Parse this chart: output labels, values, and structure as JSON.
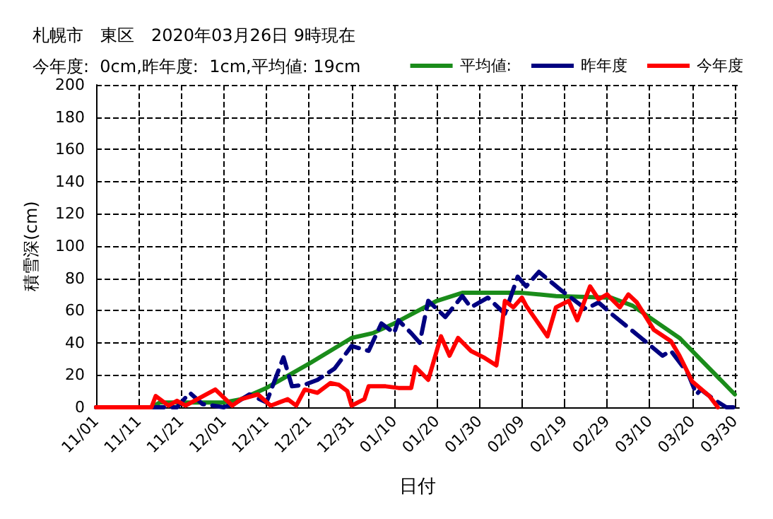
{
  "chart_data": {
    "type": "line",
    "title": "札幌市　東区　2020年03月26日 9時現在",
    "subtitle": "今年度:  0cm,昨年度:  1cm,平均値: 19cm",
    "xlabel": "日付",
    "ylabel": "積雪深(cm)",
    "xlim": [
      "2019-11-01",
      "2020-03-31"
    ],
    "xticks": [
      {
        "value": "2019-11-01",
        "label": "11/01"
      },
      {
        "value": "2019-11-11",
        "label": "11/11"
      },
      {
        "value": "2019-11-21",
        "label": "11/21"
      },
      {
        "value": "2019-12-01",
        "label": "12/01"
      },
      {
        "value": "2019-12-11",
        "label": "12/11"
      },
      {
        "value": "2019-12-21",
        "label": "12/21"
      },
      {
        "value": "2019-12-31",
        "label": "12/31"
      },
      {
        "value": "2020-01-10",
        "label": "01/10"
      },
      {
        "value": "2020-01-20",
        "label": "01/20"
      },
      {
        "value": "2020-01-30",
        "label": "01/30"
      },
      {
        "value": "2020-02-09",
        "label": "02/09"
      },
      {
        "value": "2020-02-19",
        "label": "02/19"
      },
      {
        "value": "2020-02-29",
        "label": "02/29"
      },
      {
        "value": "2020-03-10",
        "label": "03/10"
      },
      {
        "value": "2020-03-20",
        "label": "03/20"
      },
      {
        "value": "2020-03-30",
        "label": "03/30"
      }
    ],
    "ylim": [
      0,
      200
    ],
    "yticks": [
      0,
      20,
      40,
      60,
      80,
      100,
      120,
      140,
      160,
      180,
      200
    ],
    "grid": true,
    "legend": "top right",
    "marker": "none",
    "series": [
      {
        "name": "平均値:",
        "color": "#1a8c1a",
        "line_style": "solid",
        "x": [
          "2019-11-01",
          "2019-11-14",
          "2019-11-16",
          "2019-12-01",
          "2019-12-05",
          "2019-12-11",
          "2019-12-21",
          "2019-12-31",
          "2020-01-05",
          "2020-01-10",
          "2020-01-20",
          "2020-01-26",
          "2020-02-09",
          "2020-02-17",
          "2020-03-01",
          "2020-03-06",
          "2020-03-17",
          "2020-03-30"
        ],
        "values": [
          0,
          0,
          3,
          3,
          5,
          12,
          27,
          43,
          46,
          52,
          66,
          71,
          71,
          69,
          68,
          63,
          43,
          8
        ]
      },
      {
        "name": "昨年度",
        "color": "#000080",
        "line_style": "dashed",
        "x": [
          "2019-11-01",
          "2019-11-20",
          "2019-11-23",
          "2019-11-26",
          "2019-12-01",
          "2019-12-04",
          "2019-12-07",
          "2019-12-11",
          "2019-12-15",
          "2019-12-17",
          "2019-12-20",
          "2019-12-23",
          "2019-12-27",
          "2019-12-31",
          "2020-01-04",
          "2020-01-07",
          "2020-01-10",
          "2020-01-11",
          "2020-01-14",
          "2020-01-16",
          "2020-01-18",
          "2020-01-22",
          "2020-01-26",
          "2020-01-28",
          "2020-02-01",
          "2020-02-05",
          "2020-02-08",
          "2020-02-10",
          "2020-02-13",
          "2020-02-18",
          "2020-02-24",
          "2020-02-27",
          "2020-03-01",
          "2020-03-08",
          "2020-03-13",
          "2020-03-15",
          "2020-03-19",
          "2020-03-21",
          "2020-03-22",
          "2020-03-25",
          "2020-03-28",
          "2020-03-30"
        ],
        "values": [
          0,
          0,
          9,
          2,
          0,
          3,
          8,
          3,
          31,
          13,
          14,
          17,
          24,
          38,
          35,
          52,
          46,
          54,
          46,
          40,
          66,
          56,
          69,
          62,
          68,
          58,
          81,
          75,
          84,
          73,
          61,
          65,
          58,
          43,
          32,
          35,
          21,
          8,
          11,
          5,
          0,
          0
        ]
      },
      {
        "name": "今年度",
        "color": "#ff0000",
        "line_style": "solid",
        "x": [
          "2019-11-01",
          "2019-11-14",
          "2019-11-15",
          "2019-11-16",
          "2019-11-18",
          "2019-11-20",
          "2019-11-22",
          "2019-11-29",
          "2019-12-03",
          "2019-12-05",
          "2019-12-09",
          "2019-12-12",
          "2019-12-14",
          "2019-12-16",
          "2019-12-18",
          "2019-12-20",
          "2019-12-23",
          "2019-12-26",
          "2019-12-28",
          "2019-12-30",
          "2019-12-31",
          "2020-01-03",
          "2020-01-04",
          "2020-01-08",
          "2020-01-11",
          "2020-01-14",
          "2020-01-15",
          "2020-01-18",
          "2020-01-21",
          "2020-01-23",
          "2020-01-25",
          "2020-01-28",
          "2020-01-31",
          "2020-02-03",
          "2020-02-04",
          "2020-02-05",
          "2020-02-07",
          "2020-02-09",
          "2020-02-10",
          "2020-02-15",
          "2020-02-17",
          "2020-02-20",
          "2020-02-22",
          "2020-02-25",
          "2020-02-27",
          "2020-02-29",
          "2020-03-03",
          "2020-03-05",
          "2020-03-07",
          "2020-03-11",
          "2020-03-15",
          "2020-03-17",
          "2020-03-20",
          "2020-03-24",
          "2020-03-26"
        ],
        "values": [
          0,
          0,
          7,
          5,
          1,
          4,
          1,
          11,
          1,
          5,
          8,
          1,
          3,
          5,
          1,
          11,
          9,
          15,
          14,
          10,
          1,
          5,
          13,
          13,
          12,
          12,
          25,
          17,
          44,
          32,
          43,
          35,
          31,
          26,
          44,
          66,
          62,
          68,
          63,
          44,
          62,
          66,
          54,
          75,
          67,
          70,
          62,
          70,
          65,
          48,
          41,
          32,
          16,
          7,
          0
        ]
      }
    ]
  }
}
